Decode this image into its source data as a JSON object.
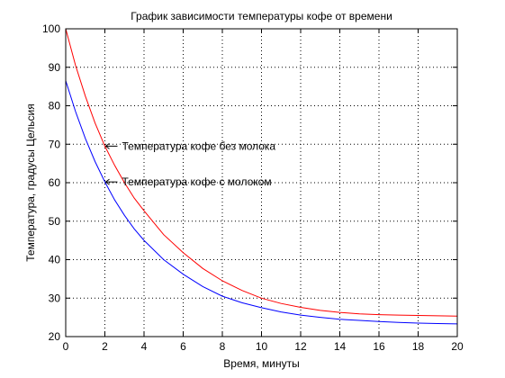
{
  "chart_data": {
    "type": "line",
    "title": "График зависимости температуры кофе от времени",
    "xlabel": "Время, минуты",
    "ylabel": "Температура, градусы Цельсия",
    "xlim": [
      0,
      20
    ],
    "ylim": [
      20,
      100
    ],
    "xticks": [
      0,
      2,
      4,
      6,
      8,
      10,
      12,
      14,
      16,
      18,
      20
    ],
    "yticks": [
      20,
      30,
      40,
      50,
      60,
      70,
      80,
      90,
      100
    ],
    "grid": true,
    "grid_style": "dotted",
    "series": [
      {
        "name": "Температура кофе без молока",
        "color": "#ff0000",
        "x": [
          0,
          0.5,
          1,
          1.5,
          2,
          2.5,
          3,
          3.5,
          4,
          5,
          6,
          7,
          8,
          9,
          10,
          11,
          12,
          13,
          14,
          15,
          16,
          17,
          18,
          19,
          20
        ],
        "y": [
          100,
          90.5,
          82.5,
          75.5,
          69.5,
          64.5,
          60,
          56,
          52.7,
          46.5,
          41.8,
          37.7,
          34.5,
          32,
          30,
          28.6,
          27.6,
          26.8,
          26.3,
          25.9,
          25.7,
          25.6,
          25.5,
          25.4,
          25.3
        ]
      },
      {
        "name": "Температура кофе с молоком",
        "color": "#0000ff",
        "x": [
          0,
          0.5,
          1,
          1.5,
          2,
          2.5,
          3,
          3.5,
          4,
          5,
          6,
          7,
          8,
          9,
          10,
          11,
          12,
          13,
          14,
          15,
          16,
          17,
          18,
          19,
          20
        ],
        "y": [
          86.5,
          78.5,
          71.5,
          65.5,
          60.2,
          55.5,
          51.5,
          48,
          45,
          40,
          36.2,
          33,
          30.5,
          28.8,
          27.5,
          26.4,
          25.6,
          25,
          24.5,
          24.2,
          23.9,
          23.7,
          23.5,
          23.4,
          23.3
        ]
      }
    ],
    "annotations": [
      {
        "text": "Температура кофе без молока",
        "target": [
          2,
          69.5
        ]
      },
      {
        "text": "Температура кофе с молоком",
        "target": [
          2,
          60.2
        ]
      }
    ]
  }
}
